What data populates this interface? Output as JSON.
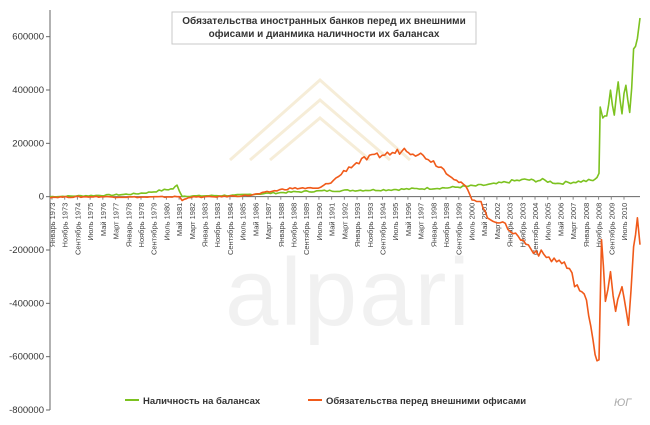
{
  "chart_data": {
    "type": "line",
    "title": [
      "Обязательства иностранных банков перед их внешними",
      "офисами и дианмика наличности их балансах"
    ],
    "ylim": [
      -800000,
      700000
    ],
    "yticks": [
      -800000,
      -600000,
      -400000,
      -200000,
      0,
      200000,
      400000,
      600000
    ],
    "ytick_labels": [
      "-800000",
      "-600000",
      "-400000",
      "-200000",
      "0",
      "200000",
      "400000",
      "600000"
    ],
    "xlim": [
      "1973-01",
      "2011-05"
    ],
    "xtick_labels": [
      "Январь 1973",
      "Ноябрь 1973",
      "Сентябрь 1974",
      "Июль 1975",
      "Май 1976",
      "Март 1977",
      "Январь 1978",
      "Ноябрь 1978",
      "Сентябрь 1979",
      "Июль 1980",
      "Май 1981",
      "Март 1982",
      "Январь 1983",
      "Ноябрь 1983",
      "Сентябрь 1984",
      "Июль 1985",
      "Май 1986",
      "Март 1987",
      "Январь 1988",
      "Ноябрь 1988",
      "Сентябрь 1989",
      "Июль 1990",
      "Май 1991",
      "Март 1992",
      "Январь 1993",
      "Ноябрь 1993",
      "Сентябрь 1994",
      "Июль 1995",
      "Май 1996",
      "Март 1997",
      "Январь 1998",
      "Ноябрь 1998",
      "Сентябрь 1999",
      "Июль 2000",
      "Май 2001",
      "Март 2002",
      "Январь 2003",
      "Ноябрь 2003",
      "Сентябрь 2004",
      "Июль 2005",
      "Май 2006",
      "Март 2007",
      "Январь 2008",
      "Ноябрь 2008",
      "Сентябрь 2009",
      "Июль 2010"
    ],
    "series": [
      {
        "name": "Наличность на балансах",
        "color": "#7cc220",
        "points": [
          [
            "1973-01",
            0
          ],
          [
            "1975-01",
            3000
          ],
          [
            "1977-01",
            6000
          ],
          [
            "1978-06",
            10000
          ],
          [
            "1979-06",
            16000
          ],
          [
            "1980-06",
            25000
          ],
          [
            "1981-01",
            30000
          ],
          [
            "1981-04",
            42000
          ],
          [
            "1981-06",
            22000
          ],
          [
            "1981-08",
            2000
          ],
          [
            "1983-01",
            3000
          ],
          [
            "1985-01",
            5000
          ],
          [
            "1987-01",
            12000
          ],
          [
            "1989-01",
            18000
          ],
          [
            "1991-01",
            22000
          ],
          [
            "1993-01",
            24000
          ],
          [
            "1995-01",
            26000
          ],
          [
            "1997-01",
            30000
          ],
          [
            "1999-01",
            34000
          ],
          [
            "2000-01",
            38000
          ],
          [
            "2001-01",
            42000
          ],
          [
            "2002-01",
            48000
          ],
          [
            "2003-01",
            58000
          ],
          [
            "2004-01",
            64000
          ],
          [
            "2004-06",
            60000
          ],
          [
            "2005-01",
            62000
          ],
          [
            "2006-01",
            50000
          ],
          [
            "2007-01",
            55000
          ],
          [
            "2008-01",
            60000
          ],
          [
            "2008-06",
            62000
          ],
          [
            "2008-09",
            90000
          ],
          [
            "2008-10",
            340000
          ],
          [
            "2008-12",
            280000
          ],
          [
            "2009-03",
            320000
          ],
          [
            "2009-06",
            400000
          ],
          [
            "2009-09",
            310000
          ],
          [
            "2009-12",
            440000
          ],
          [
            "2010-03",
            330000
          ],
          [
            "2010-06",
            420000
          ],
          [
            "2010-09",
            300000
          ],
          [
            "2010-12",
            560000
          ],
          [
            "2011-03",
            600000
          ],
          [
            "2011-05",
            670000
          ]
        ]
      },
      {
        "name": "Обязательства перед внешними офисами",
        "color": "#f05a1a",
        "points": [
          [
            "1973-01",
            -2000
          ],
          [
            "1976-01",
            0
          ],
          [
            "1979-01",
            -2000
          ],
          [
            "1981-06",
            0
          ],
          [
            "1981-08",
            -15000
          ],
          [
            "1982-01",
            -2000
          ],
          [
            "1984-01",
            0
          ],
          [
            "1986-01",
            5000
          ],
          [
            "1987-06",
            20000
          ],
          [
            "1988-06",
            30000
          ],
          [
            "1989-06",
            32000
          ],
          [
            "1990-06",
            30000
          ],
          [
            "1991-06",
            60000
          ],
          [
            "1992-06",
            110000
          ],
          [
            "1993-06",
            140000
          ],
          [
            "1994-06",
            155000
          ],
          [
            "1995-06",
            165000
          ],
          [
            "1996-03",
            180000
          ],
          [
            "1996-06",
            170000
          ],
          [
            "1997-06",
            150000
          ],
          [
            "1998-06",
            110000
          ],
          [
            "1999-06",
            60000
          ],
          [
            "2000-01",
            40000
          ],
          [
            "2000-06",
            -10000
          ],
          [
            "2001-01",
            -20000
          ],
          [
            "2001-06",
            -80000
          ],
          [
            "2002-06",
            -100000
          ],
          [
            "2003-06",
            -150000
          ],
          [
            "2004-06",
            -200000
          ],
          [
            "2005-06",
            -230000
          ],
          [
            "2006-06",
            -250000
          ],
          [
            "2007-06",
            -350000
          ],
          [
            "2008-01",
            -420000
          ],
          [
            "2008-06",
            -580000
          ],
          [
            "2008-09",
            -610000
          ],
          [
            "2008-11",
            -150000
          ],
          [
            "2009-02",
            -400000
          ],
          [
            "2009-06",
            -300000
          ],
          [
            "2009-10",
            -420000
          ],
          [
            "2010-03",
            -350000
          ],
          [
            "2010-08",
            -470000
          ],
          [
            "2010-12",
            -200000
          ],
          [
            "2011-03",
            -80000
          ],
          [
            "2011-05",
            -180000
          ]
        ]
      }
    ],
    "legend_position": "bottom",
    "grid": false
  },
  "watermark": "alpari",
  "signature": "ЮГ"
}
